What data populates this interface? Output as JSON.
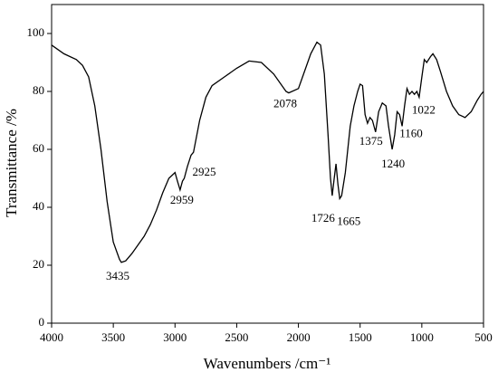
{
  "chart_data": {
    "type": "line",
    "xlabel": "Wavenumbers /cm⁻¹",
    "ylabel": "Transmittance /%",
    "color": "#000000",
    "xlim": [
      4000,
      500
    ],
    "ylim": [
      0,
      110
    ],
    "xticks": [
      4000,
      3500,
      3000,
      2500,
      2000,
      1500,
      1000,
      500
    ],
    "yticks": [
      0,
      20,
      40,
      60,
      80,
      100
    ],
    "x": [
      4000,
      3900,
      3800,
      3750,
      3700,
      3650,
      3600,
      3550,
      3500,
      3450,
      3435,
      3400,
      3350,
      3300,
      3250,
      3200,
      3150,
      3100,
      3050,
      3000,
      2980,
      2959,
      2940,
      2925,
      2900,
      2870,
      2850,
      2800,
      2750,
      2700,
      2600,
      2500,
      2400,
      2300,
      2200,
      2100,
      2078,
      2000,
      1950,
      1900,
      1850,
      1820,
      1790,
      1760,
      1740,
      1726,
      1710,
      1695,
      1680,
      1665,
      1650,
      1620,
      1580,
      1550,
      1520,
      1500,
      1480,
      1460,
      1440,
      1420,
      1400,
      1375,
      1350,
      1320,
      1290,
      1270,
      1240,
      1220,
      1200,
      1180,
      1160,
      1140,
      1120,
      1100,
      1080,
      1060,
      1040,
      1022,
      1000,
      980,
      960,
      930,
      910,
      880,
      850,
      800,
      750,
      700,
      650,
      600,
      550,
      520,
      500
    ],
    "values": [
      96,
      93,
      91,
      89,
      85,
      75,
      60,
      42,
      28,
      22,
      21,
      21.5,
      24,
      27,
      30,
      34,
      39,
      45,
      50,
      52,
      49,
      46,
      49,
      50,
      54,
      58,
      59,
      70,
      78,
      82,
      85,
      88,
      90.5,
      90,
      86,
      80,
      79.5,
      81,
      87,
      93,
      97,
      96,
      86,
      65,
      50,
      44,
      50,
      55,
      48,
      43,
      44,
      52,
      68,
      75,
      80,
      82.5,
      82,
      72,
      69,
      71,
      70,
      66,
      73,
      76,
      75,
      68,
      60,
      65,
      73,
      72,
      68,
      75,
      81,
      79,
      80,
      79,
      80,
      78,
      85,
      91,
      90,
      92,
      93,
      91,
      87,
      80,
      75,
      72,
      71,
      73,
      77,
      79,
      80
    ],
    "peaks": [
      3435,
      2959,
      2925,
      2078,
      1726,
      1665,
      1375,
      1240,
      1160,
      1022
    ]
  }
}
